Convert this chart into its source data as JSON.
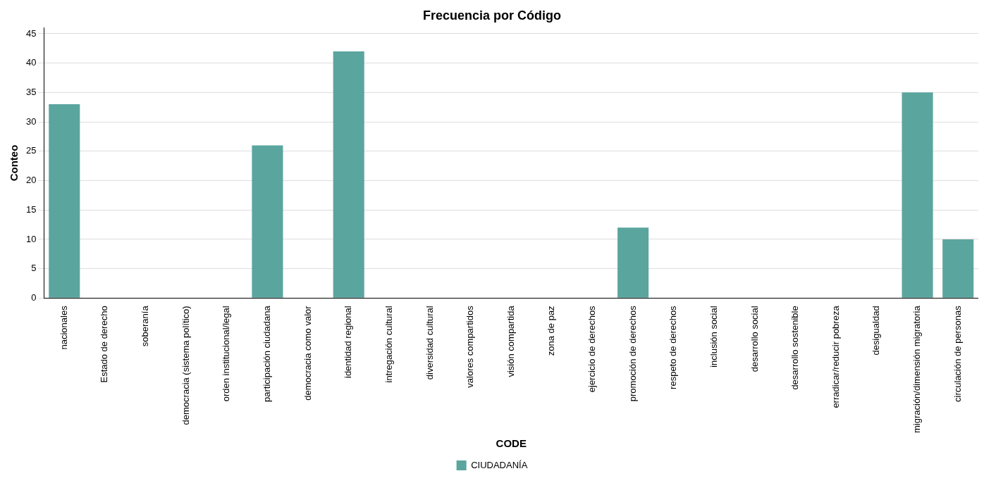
{
  "chart_data": {
    "type": "bar",
    "title": "Frecuencia por Código",
    "xlabel": "CODE",
    "ylabel": "Conteo",
    "categories": [
      "nacionales",
      "Estado de derecho",
      "soberanía",
      "democracia (sistema político)",
      "orden institucional/legal",
      "participación ciudadana",
      "democracia como valor",
      "identidad regional",
      "intregación cultural",
      "diversidad cultural",
      "valores compartidos",
      "visión compartida",
      "zona de paz",
      "ejercicio de derechos",
      "promoción de derechos",
      "respeto de derechos",
      "inclusión social",
      "desarrollo social",
      "desarrollo sostenible",
      "erradicar/reducir pobreza",
      "desigualdad",
      "migración/dimensión migratoria",
      "circulación de personas"
    ],
    "series": [
      {
        "name": "CIUDADANÍA",
        "color": "#5ba59f",
        "values": [
          33,
          0,
          0,
          0,
          0,
          26,
          0,
          42,
          0,
          0,
          0,
          0,
          0,
          0,
          12,
          0,
          0,
          0,
          0,
          0,
          0,
          35,
          10
        ]
      }
    ],
    "ylim": [
      0,
      46
    ],
    "yticks": [
      0,
      5,
      10,
      15,
      20,
      25,
      30,
      35,
      40,
      45
    ],
    "grid": "y",
    "legend": "bottom"
  }
}
